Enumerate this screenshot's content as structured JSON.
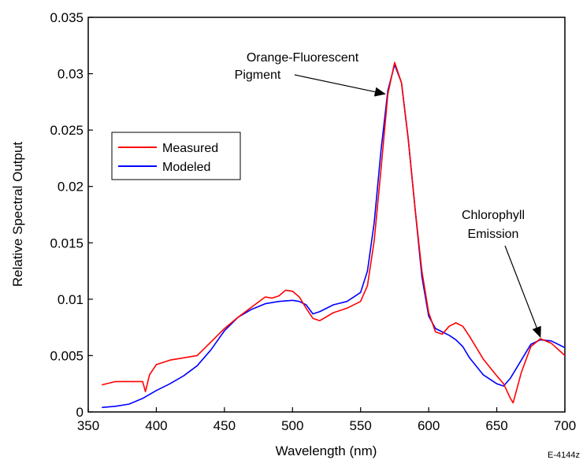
{
  "chart_data": {
    "type": "line",
    "title": "",
    "xlabel": "Wavelength (nm)",
    "ylabel": "Relative Spectral Output",
    "xlim": [
      350,
      700
    ],
    "ylim": [
      0,
      0.035
    ],
    "x_ticks": [
      "350",
      "400",
      "450",
      "500",
      "550",
      "600",
      "650",
      "700"
    ],
    "y_ticks": [
      "0",
      "0.005",
      "0.01",
      "0.015",
      "0.02",
      "0.025",
      "0.03",
      "0.035"
    ],
    "x_tick_values": [
      350,
      400,
      450,
      500,
      550,
      600,
      650,
      700
    ],
    "y_tick_values": [
      0,
      0.005,
      0.01,
      0.015,
      0.02,
      0.025,
      0.03,
      0.035
    ],
    "grid": false,
    "legend_position": "left",
    "series": [
      {
        "name": "Measured",
        "color": "#ff0000",
        "points": [
          [
            360,
            0.0024
          ],
          [
            370,
            0.0027
          ],
          [
            380,
            0.0027
          ],
          [
            390,
            0.0027
          ],
          [
            392,
            0.0018
          ],
          [
            395,
            0.0033
          ],
          [
            400,
            0.0042
          ],
          [
            410,
            0.0046
          ],
          [
            420,
            0.0048
          ],
          [
            430,
            0.005
          ],
          [
            440,
            0.0062
          ],
          [
            450,
            0.0074
          ],
          [
            460,
            0.0084
          ],
          [
            470,
            0.0093
          ],
          [
            480,
            0.0102
          ],
          [
            485,
            0.0101
          ],
          [
            490,
            0.0103
          ],
          [
            495,
            0.0108
          ],
          [
            500,
            0.0107
          ],
          [
            505,
            0.0102
          ],
          [
            510,
            0.0092
          ],
          [
            515,
            0.0083
          ],
          [
            520,
            0.0081
          ],
          [
            530,
            0.0088
          ],
          [
            540,
            0.0092
          ],
          [
            550,
            0.0098
          ],
          [
            555,
            0.0112
          ],
          [
            560,
            0.0152
          ],
          [
            565,
            0.0215
          ],
          [
            570,
            0.0282
          ],
          [
            575,
            0.031
          ],
          [
            580,
            0.0292
          ],
          [
            585,
            0.0242
          ],
          [
            590,
            0.018
          ],
          [
            595,
            0.0125
          ],
          [
            600,
            0.0088
          ],
          [
            605,
            0.0071
          ],
          [
            610,
            0.0069
          ],
          [
            615,
            0.0076
          ],
          [
            620,
            0.0079
          ],
          [
            625,
            0.0076
          ],
          [
            630,
            0.0067
          ],
          [
            640,
            0.0047
          ],
          [
            650,
            0.0032
          ],
          [
            655,
            0.0025
          ],
          [
            660,
            0.0012
          ],
          [
            662,
            0.0008
          ],
          [
            668,
            0.0035
          ],
          [
            675,
            0.0058
          ],
          [
            682,
            0.0065
          ],
          [
            690,
            0.0061
          ],
          [
            700,
            0.005
          ]
        ]
      },
      {
        "name": "Modeled",
        "color": "#0000ff",
        "points": [
          [
            360,
            0.0004
          ],
          [
            370,
            0.0005
          ],
          [
            380,
            0.0007
          ],
          [
            390,
            0.0012
          ],
          [
            400,
            0.0019
          ],
          [
            410,
            0.0025
          ],
          [
            420,
            0.0032
          ],
          [
            430,
            0.0041
          ],
          [
            440,
            0.0055
          ],
          [
            450,
            0.0072
          ],
          [
            460,
            0.0084
          ],
          [
            470,
            0.0091
          ],
          [
            480,
            0.0096
          ],
          [
            490,
            0.0098
          ],
          [
            500,
            0.0099
          ],
          [
            505,
            0.0098
          ],
          [
            510,
            0.0095
          ],
          [
            515,
            0.0087
          ],
          [
            520,
            0.0089
          ],
          [
            530,
            0.0095
          ],
          [
            540,
            0.0098
          ],
          [
            550,
            0.0106
          ],
          [
            555,
            0.0125
          ],
          [
            560,
            0.0168
          ],
          [
            565,
            0.0232
          ],
          [
            570,
            0.0285
          ],
          [
            575,
            0.0308
          ],
          [
            580,
            0.0292
          ],
          [
            585,
            0.0242
          ],
          [
            590,
            0.018
          ],
          [
            595,
            0.012
          ],
          [
            600,
            0.0085
          ],
          [
            605,
            0.0074
          ],
          [
            610,
            0.0071
          ],
          [
            615,
            0.0068
          ],
          [
            620,
            0.0064
          ],
          [
            625,
            0.0058
          ],
          [
            630,
            0.0048
          ],
          [
            640,
            0.0033
          ],
          [
            650,
            0.0025
          ],
          [
            655,
            0.0023
          ],
          [
            660,
            0.003
          ],
          [
            668,
            0.0046
          ],
          [
            675,
            0.006
          ],
          [
            682,
            0.0064
          ],
          [
            690,
            0.0063
          ],
          [
            700,
            0.0057
          ]
        ]
      }
    ],
    "annotations": [
      {
        "lines": [
          "Orange-Fluorescent",
          "Pigment"
        ],
        "target": [
          568,
          0.0282
        ]
      },
      {
        "lines": [
          "Chlorophyll",
          "Emission"
        ],
        "target": [
          682,
          0.0065
        ]
      }
    ],
    "figure_code": "E-4144z"
  }
}
